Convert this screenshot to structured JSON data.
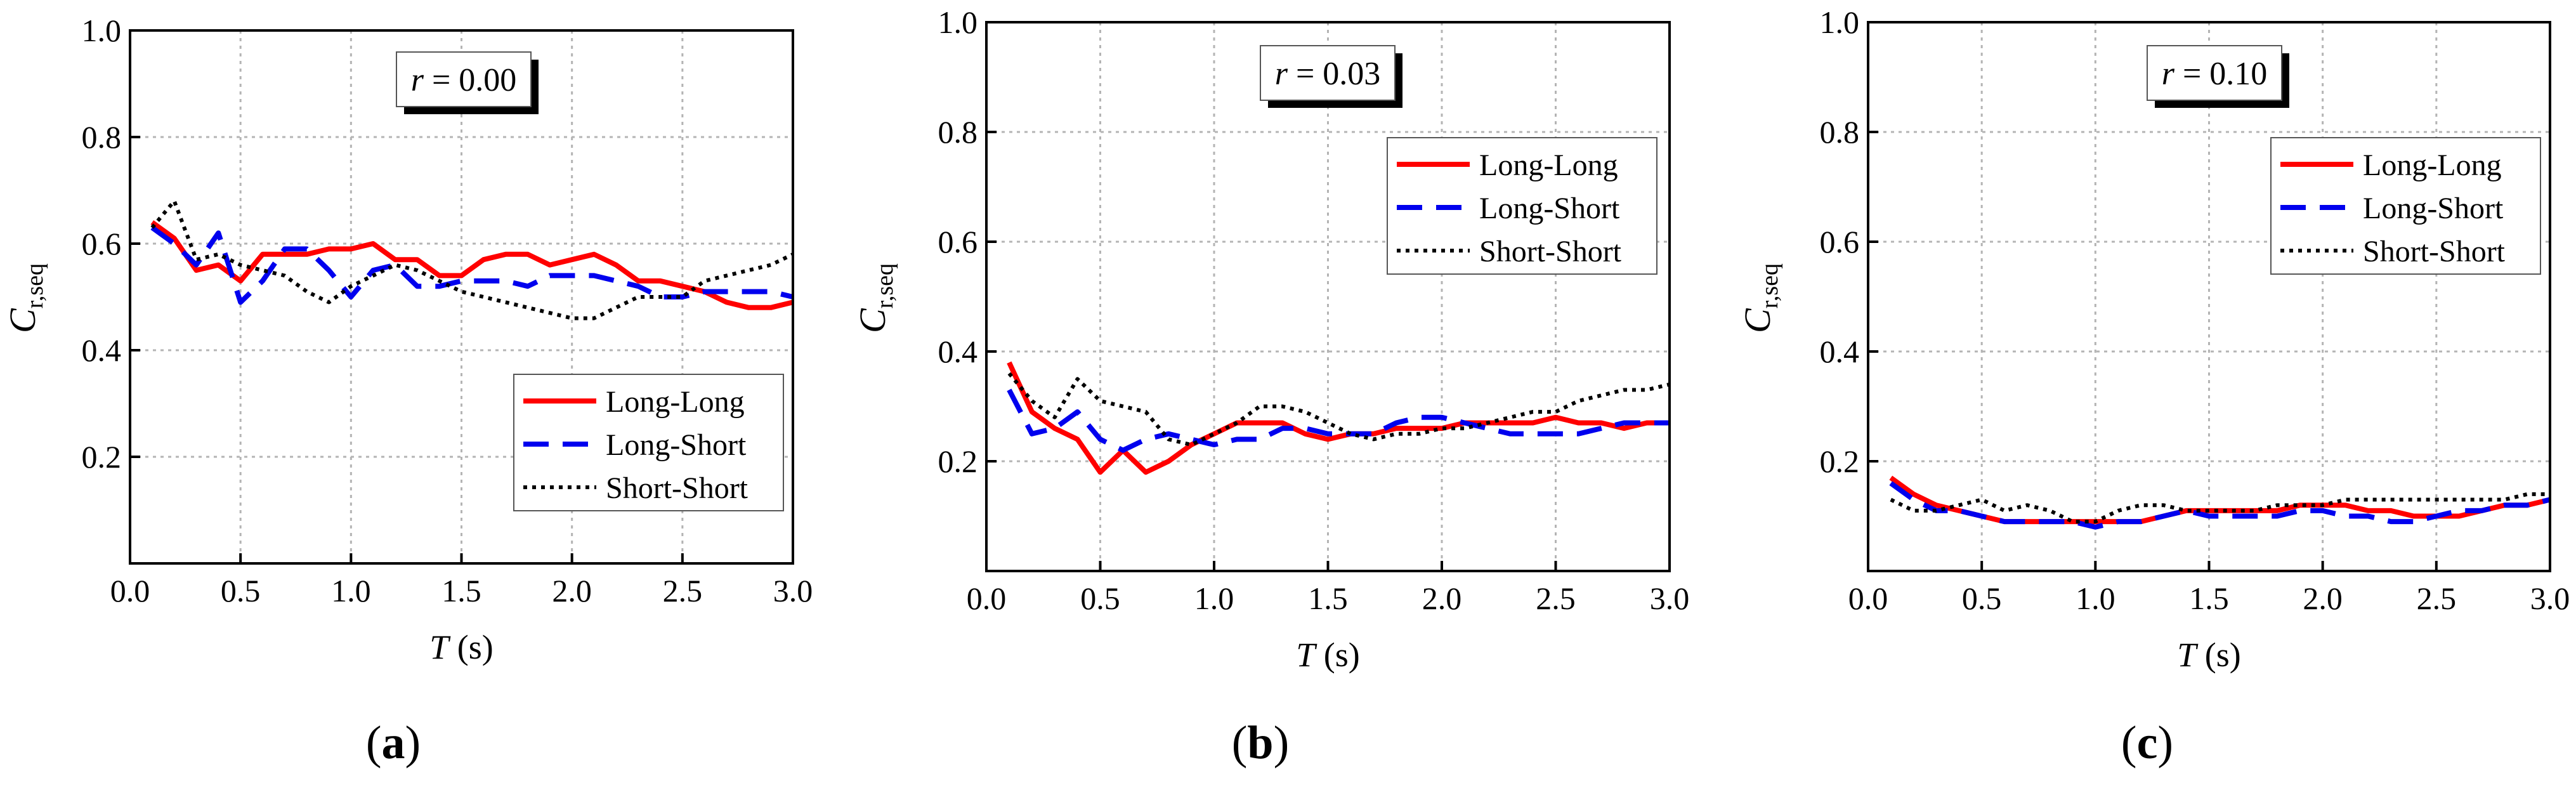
{
  "colors": {
    "long_long": "#ff0000",
    "long_short": "#0000ee",
    "short_short": "#000000",
    "grid": "#b4b4b4"
  },
  "chart_data": [
    {
      "type": "line",
      "panel_label": "(a)",
      "annotation": {
        "symbol": "r",
        "value": " = 0.00"
      },
      "xlabel": {
        "symbol": "T",
        "unit": " (s)"
      },
      "ylabel": {
        "base": "C",
        "sub": "r,seq"
      },
      "xlim": [
        0,
        3
      ],
      "ylim": [
        0,
        1
      ],
      "xticks": [
        "0.0",
        "0.5",
        "1.0",
        "1.5",
        "2.0",
        "2.5",
        "3.0"
      ],
      "yticks": [
        "0.2",
        "0.4",
        "0.6",
        "0.8",
        "1.0"
      ],
      "grid": true,
      "legend_position": "lower-right",
      "x": [
        0.1,
        0.2,
        0.3,
        0.4,
        0.5,
        0.6,
        0.7,
        0.8,
        0.9,
        1.0,
        1.1,
        1.2,
        1.3,
        1.4,
        1.5,
        1.6,
        1.7,
        1.8,
        1.9,
        2.0,
        2.1,
        2.2,
        2.3,
        2.4,
        2.5,
        2.6,
        2.7,
        2.8,
        2.9,
        3.0
      ],
      "series": [
        {
          "name": "Long-Long",
          "values": [
            0.64,
            0.61,
            0.55,
            0.56,
            0.53,
            0.58,
            0.58,
            0.58,
            0.59,
            0.59,
            0.6,
            0.57,
            0.57,
            0.54,
            0.54,
            0.57,
            0.58,
            0.58,
            0.56,
            0.57,
            0.58,
            0.56,
            0.53,
            0.53,
            0.52,
            0.51,
            0.49,
            0.48,
            0.48,
            0.49
          ]
        },
        {
          "name": "Long-Short",
          "values": [
            0.63,
            0.6,
            0.56,
            0.62,
            0.49,
            0.53,
            0.59,
            0.59,
            0.55,
            0.5,
            0.55,
            0.56,
            0.52,
            0.52,
            0.53,
            0.53,
            0.53,
            0.52,
            0.54,
            0.54,
            0.54,
            0.53,
            0.52,
            0.5,
            0.5,
            0.51,
            0.51,
            0.51,
            0.51,
            0.5
          ]
        },
        {
          "name": "Short-Short",
          "values": [
            0.63,
            0.68,
            0.57,
            0.58,
            0.56,
            0.55,
            0.54,
            0.51,
            0.49,
            0.52,
            0.54,
            0.56,
            0.55,
            0.53,
            0.51,
            0.5,
            0.49,
            0.48,
            0.47,
            0.46,
            0.46,
            0.48,
            0.5,
            0.5,
            0.5,
            0.53,
            0.54,
            0.55,
            0.56,
            0.58
          ]
        }
      ]
    },
    {
      "type": "line",
      "panel_label": "(b)",
      "annotation": {
        "symbol": "r",
        "value": " = 0.03"
      },
      "xlabel": {
        "symbol": "T",
        "unit": " (s)"
      },
      "ylabel": {
        "base": "C",
        "sub": "r,seq"
      },
      "xlim": [
        0,
        3
      ],
      "ylim": [
        0,
        1
      ],
      "xticks": [
        "0.0",
        "0.5",
        "1.0",
        "1.5",
        "2.0",
        "2.5",
        "3.0"
      ],
      "yticks": [
        "0.2",
        "0.4",
        "0.6",
        "0.8",
        "1.0"
      ],
      "grid": true,
      "legend_position": "top-right",
      "x": [
        0.1,
        0.2,
        0.3,
        0.4,
        0.5,
        0.6,
        0.7,
        0.8,
        0.9,
        1.0,
        1.1,
        1.2,
        1.3,
        1.4,
        1.5,
        1.6,
        1.7,
        1.8,
        1.9,
        2.0,
        2.1,
        2.2,
        2.3,
        2.4,
        2.5,
        2.6,
        2.7,
        2.8,
        2.9,
        3.0
      ],
      "series": [
        {
          "name": "Long-Long",
          "values": [
            0.38,
            0.29,
            0.26,
            0.24,
            0.18,
            0.22,
            0.18,
            0.2,
            0.23,
            0.25,
            0.27,
            0.27,
            0.27,
            0.25,
            0.24,
            0.25,
            0.25,
            0.26,
            0.26,
            0.26,
            0.27,
            0.27,
            0.27,
            0.27,
            0.28,
            0.27,
            0.27,
            0.26,
            0.27,
            0.27
          ]
        },
        {
          "name": "Long-Short",
          "values": [
            0.33,
            0.25,
            0.26,
            0.29,
            0.24,
            0.22,
            0.24,
            0.25,
            0.24,
            0.23,
            0.24,
            0.24,
            0.26,
            0.26,
            0.25,
            0.25,
            0.25,
            0.27,
            0.28,
            0.28,
            0.27,
            0.26,
            0.25,
            0.25,
            0.25,
            0.25,
            0.26,
            0.27,
            0.27,
            0.27
          ]
        },
        {
          "name": "Short-Short",
          "values": [
            0.36,
            0.31,
            0.28,
            0.35,
            0.31,
            0.3,
            0.29,
            0.24,
            0.23,
            0.25,
            0.27,
            0.3,
            0.3,
            0.29,
            0.27,
            0.25,
            0.24,
            0.25,
            0.25,
            0.26,
            0.26,
            0.27,
            0.28,
            0.29,
            0.29,
            0.31,
            0.32,
            0.33,
            0.33,
            0.34
          ]
        }
      ]
    },
    {
      "type": "line",
      "panel_label": "(c)",
      "annotation": {
        "symbol": "r",
        "value": " = 0.10"
      },
      "xlabel": {
        "symbol": "T",
        "unit": " (s)"
      },
      "ylabel": {
        "base": "C",
        "sub": "r,seq"
      },
      "xlim": [
        0,
        3
      ],
      "ylim": [
        0,
        1
      ],
      "xticks": [
        "0.0",
        "0.5",
        "1.0",
        "1.5",
        "2.0",
        "2.5",
        "3.0"
      ],
      "yticks": [
        "0.2",
        "0.4",
        "0.6",
        "0.8",
        "1.0"
      ],
      "grid": true,
      "legend_position": "top-right",
      "x": [
        0.1,
        0.2,
        0.3,
        0.4,
        0.5,
        0.6,
        0.7,
        0.8,
        0.9,
        1.0,
        1.1,
        1.2,
        1.3,
        1.4,
        1.5,
        1.6,
        1.7,
        1.8,
        1.9,
        2.0,
        2.1,
        2.2,
        2.3,
        2.4,
        2.5,
        2.6,
        2.7,
        2.8,
        2.9,
        3.0
      ],
      "series": [
        {
          "name": "Long-Long",
          "values": [
            0.17,
            0.14,
            0.12,
            0.11,
            0.1,
            0.09,
            0.09,
            0.09,
            0.09,
            0.09,
            0.09,
            0.09,
            0.1,
            0.11,
            0.11,
            0.11,
            0.11,
            0.11,
            0.12,
            0.12,
            0.12,
            0.11,
            0.11,
            0.1,
            0.1,
            0.1,
            0.11,
            0.12,
            0.12,
            0.13
          ]
        },
        {
          "name": "Long-Short",
          "values": [
            0.16,
            0.13,
            0.11,
            0.11,
            0.1,
            0.09,
            0.09,
            0.09,
            0.09,
            0.08,
            0.09,
            0.09,
            0.1,
            0.11,
            0.1,
            0.1,
            0.1,
            0.1,
            0.11,
            0.11,
            0.1,
            0.1,
            0.09,
            0.09,
            0.1,
            0.11,
            0.11,
            0.12,
            0.12,
            0.13
          ]
        },
        {
          "name": "Short-Short",
          "values": [
            0.13,
            0.11,
            0.11,
            0.12,
            0.13,
            0.11,
            0.12,
            0.11,
            0.09,
            0.09,
            0.11,
            0.12,
            0.12,
            0.11,
            0.11,
            0.11,
            0.11,
            0.12,
            0.12,
            0.12,
            0.13,
            0.13,
            0.13,
            0.13,
            0.13,
            0.13,
            0.13,
            0.13,
            0.14,
            0.14
          ]
        }
      ]
    }
  ]
}
